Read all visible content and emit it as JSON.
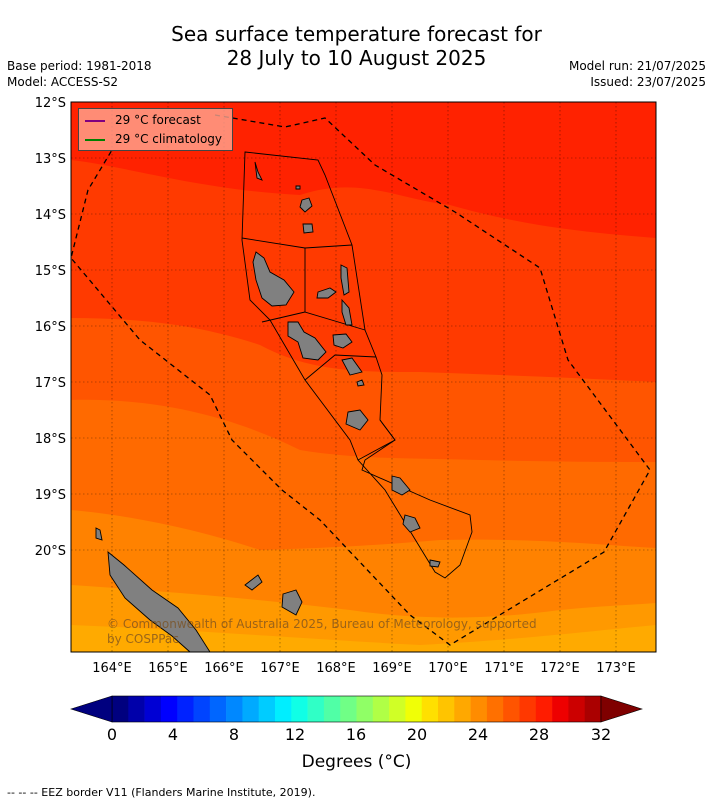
{
  "title": {
    "line1": "Sea surface temperature forecast for",
    "line2": "28 July to 10 August 2025"
  },
  "meta": {
    "base_period": "Base period: 1981-2018",
    "model": "Model: ACCESS-S2",
    "model_run": "Model run: 21/07/2025",
    "issued": "Issued: 23/07/2025"
  },
  "map": {
    "lat_labels": [
      "12°S",
      "13°S",
      "14°S",
      "15°S",
      "16°S",
      "17°S",
      "18°S",
      "19°S",
      "20°S"
    ],
    "lon_labels": [
      "164°E",
      "165°E",
      "166°E",
      "167°E",
      "168°E",
      "169°E",
      "170°E",
      "171°E",
      "172°E",
      "173°E"
    ],
    "colors": {
      "band_hottest": "#ff2200",
      "band_hot": "#ff3a00",
      "band_warm": "#ff5500",
      "band_mid": "#ff6a00",
      "band_orange": "#ff8200",
      "band_light": "#ff9900",
      "band_lightest": "#ffaa00",
      "land": "#808080",
      "eez": "#000000"
    }
  },
  "legend": {
    "forecast": "29 °C  forecast",
    "climatology": "29 °C  climatology",
    "forecast_color": "#800080",
    "climatology_color": "#008000"
  },
  "copyright": "© Commonwealth of Australia 2025, Bureau of Meteorology, supported by COSPPac",
  "colorbar": {
    "ticks": [
      "0",
      "4",
      "8",
      "12",
      "16",
      "20",
      "24",
      "28",
      "32"
    ],
    "label": "Degrees (°C)",
    "colors": [
      "#00007f",
      "#0000aa",
      "#0000d4",
      "#0000ff",
      "#0022ff",
      "#0044ff",
      "#0066ff",
      "#0088ff",
      "#00aaff",
      "#00ccff",
      "#00eeff",
      "#10ffe6",
      "#30ffc6",
      "#50ffa6",
      "#70ff86",
      "#90ff66",
      "#b0ff46",
      "#d0ff26",
      "#f0ff06",
      "#ffe000",
      "#ffc400",
      "#ffa800",
      "#ff8c00",
      "#ff7000",
      "#ff5400",
      "#ff3800",
      "#ff1c00",
      "#ee0000",
      "#cc0000",
      "#aa0000"
    ],
    "under_color": "#00007f",
    "over_color": "#7f0000"
  },
  "eez_note": "--  --  -- EEZ border V11 (Flanders Marine Institute, 2019)."
}
